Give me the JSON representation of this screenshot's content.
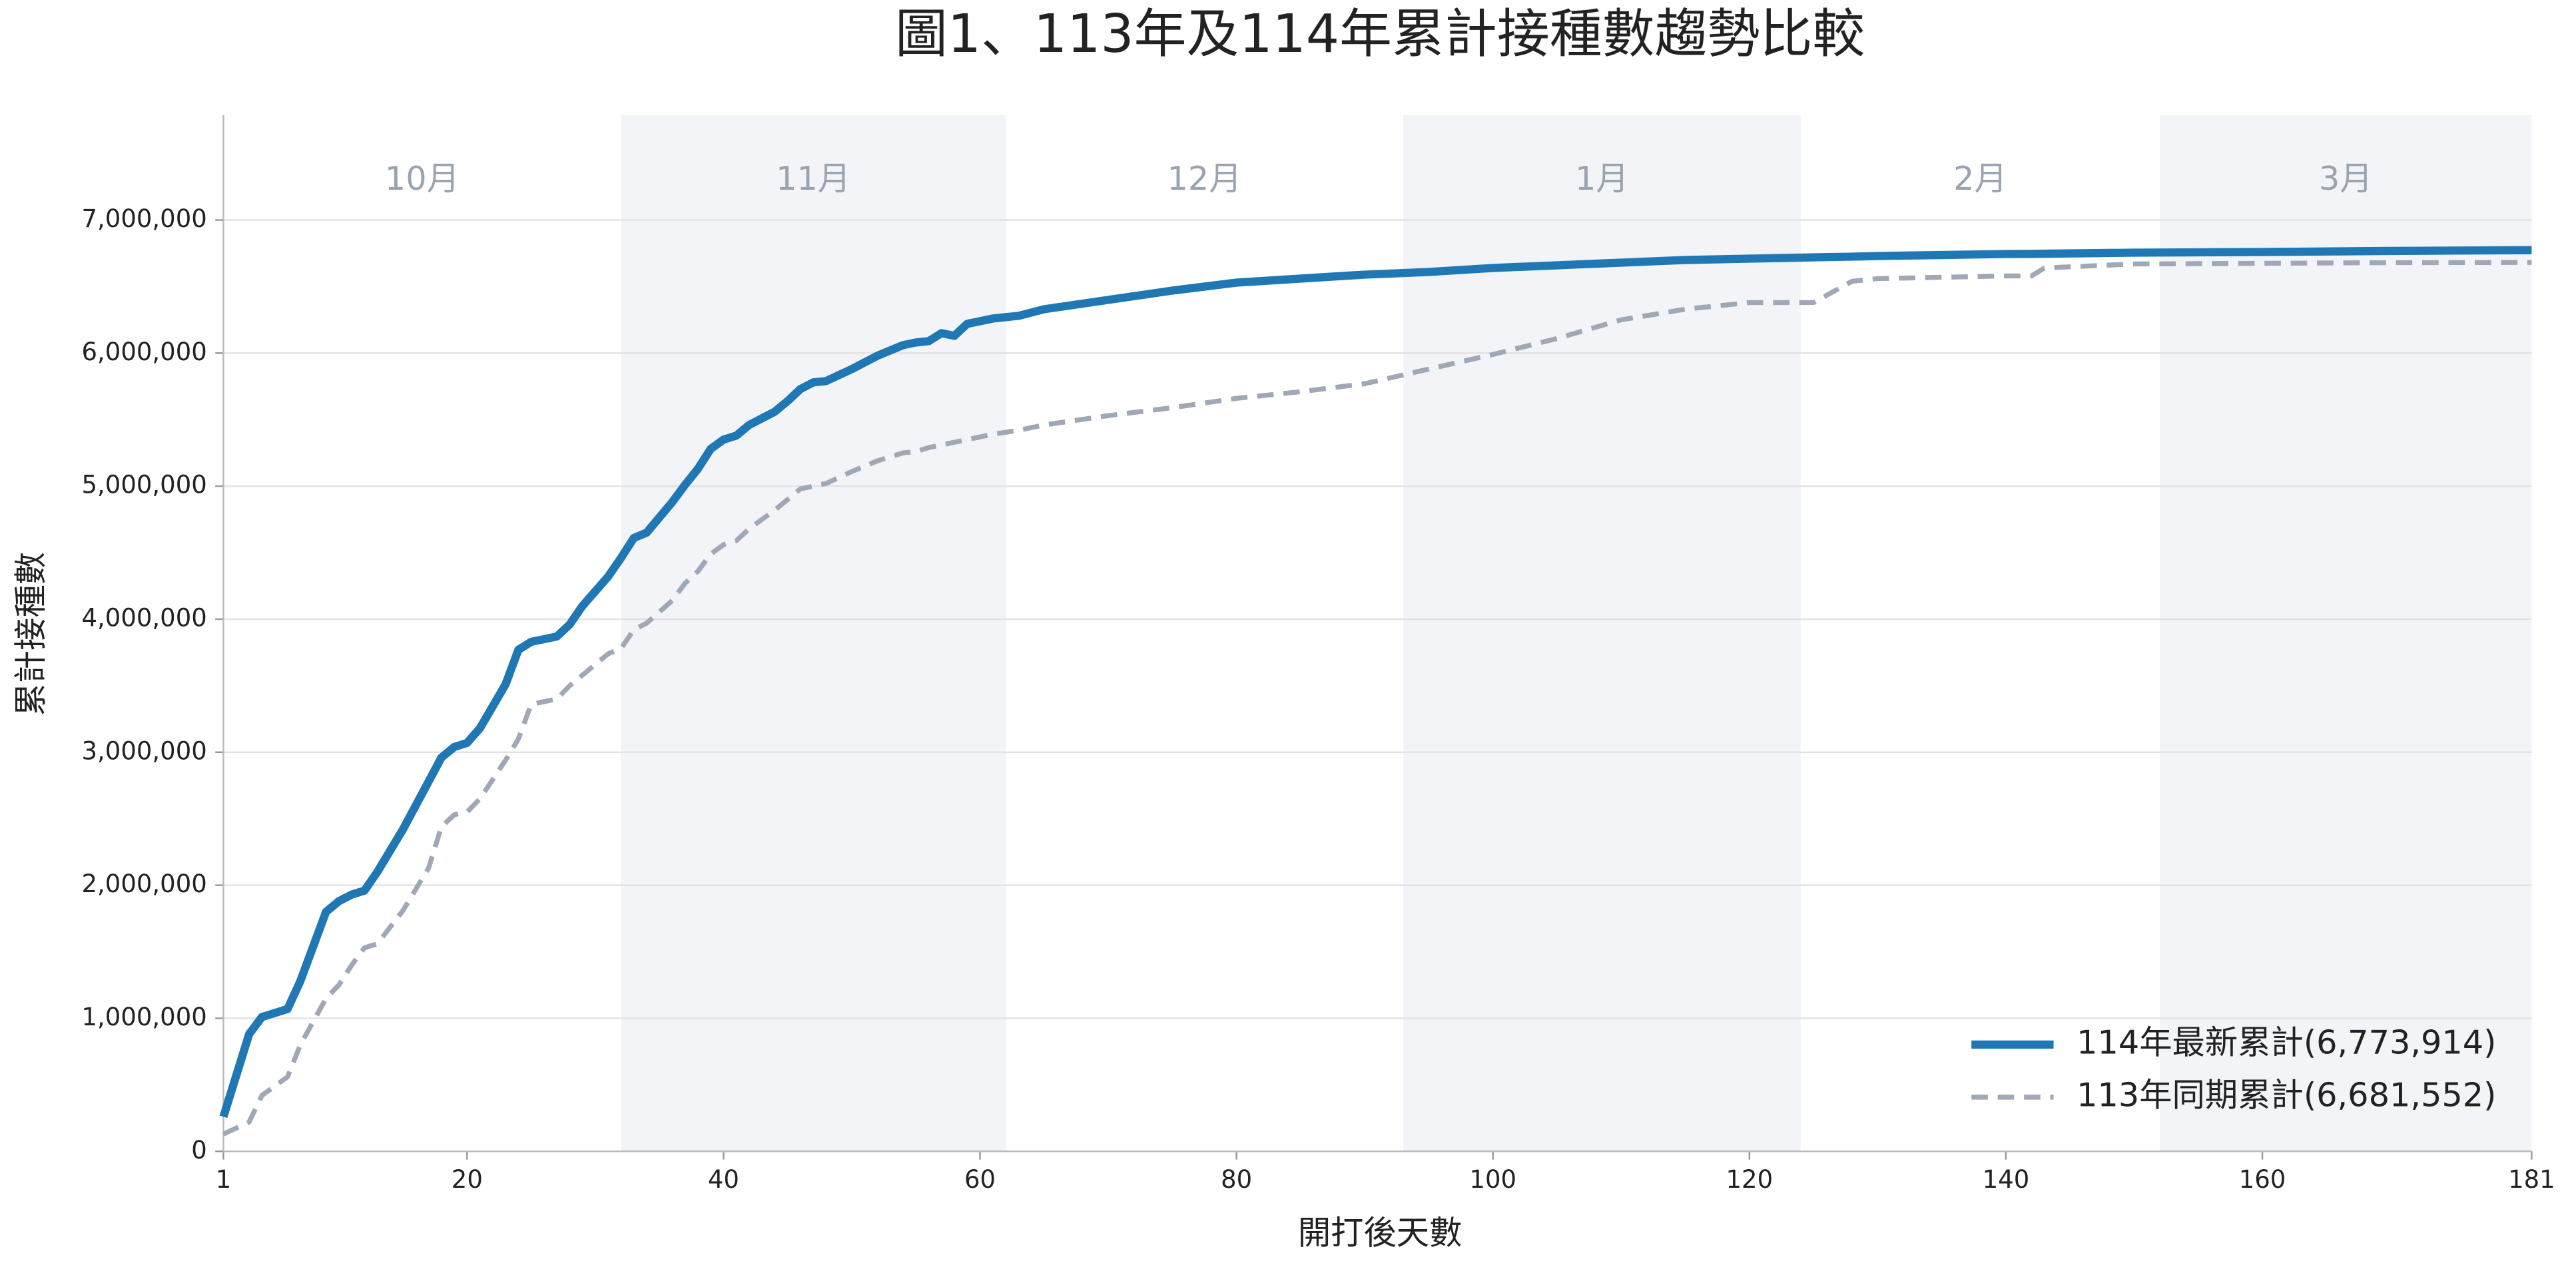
{
  "chart_data": {
    "type": "line",
    "title": "圖1、113年及114年累計接種數趨勢比較",
    "x_label": "開打後天數",
    "y_label": "累計接種數",
    "xlim": [
      1,
      181
    ],
    "ylim": [
      0,
      7790000
    ],
    "xticks": [
      1,
      20,
      40,
      60,
      80,
      100,
      120,
      140,
      160,
      181
    ],
    "yticks": [
      0,
      {
        "value": 1000000,
        "label": "1,000,000"
      },
      {
        "value": 2000000,
        "label": "2,000,000"
      },
      {
        "value": 3000000,
        "label": "3,000,000"
      },
      {
        "value": 4000000,
        "label": "4,000,000"
      },
      {
        "value": 5000000,
        "label": "5,000,000"
      },
      {
        "value": 6000000,
        "label": "6,000,000"
      },
      {
        "value": 7000000,
        "label": "7,000,000"
      }
    ],
    "grid": true,
    "legend": "lower right",
    "month_bands": [
      {
        "label": "10月",
        "start": 1,
        "end": 32
      },
      {
        "label": "11月",
        "start": 32,
        "end": 62
      },
      {
        "label": "12月",
        "start": 62,
        "end": 93
      },
      {
        "label": "1月",
        "start": 93,
        "end": 124
      },
      {
        "label": "2月",
        "start": 124,
        "end": 152
      },
      {
        "label": "3月",
        "start": 152,
        "end": 181
      }
    ],
    "x": [
      1,
      3,
      4,
      6,
      7,
      9,
      10,
      11,
      12,
      13,
      15,
      17,
      18,
      19,
      20,
      21,
      23,
      24,
      25,
      26,
      27,
      28,
      29,
      31,
      32,
      33,
      34,
      36,
      37,
      38,
      39,
      40,
      41,
      42,
      44,
      45,
      46,
      47,
      48,
      50,
      52,
      54,
      55,
      56,
      57,
      58,
      59,
      61,
      63,
      65,
      70,
      75,
      80,
      85,
      90,
      95,
      100,
      105,
      110,
      115,
      120,
      125,
      128,
      130,
      140,
      142,
      143,
      150,
      160,
      170,
      181
    ],
    "series": [
      {
        "name": "114年最新累計(6,773,914)",
        "color": "#1f77b4",
        "style": "solid",
        "values": [
          260000,
          880000,
          1010000,
          1070000,
          1280000,
          1800000,
          1880000,
          1930000,
          1960000,
          2100000,
          2420000,
          2780000,
          2960000,
          3040000,
          3070000,
          3180000,
          3510000,
          3770000,
          3830000,
          3850000,
          3870000,
          3960000,
          4100000,
          4320000,
          4460000,
          4610000,
          4650000,
          4880000,
          5010000,
          5130000,
          5280000,
          5350000,
          5380000,
          5460000,
          5560000,
          5640000,
          5730000,
          5780000,
          5790000,
          5880000,
          5980000,
          6060000,
          6080000,
          6090000,
          6150000,
          6130000,
          6220000,
          6260000,
          6280000,
          6330000,
          6400000,
          6470000,
          6530000,
          6560000,
          6590000,
          6610000,
          6640000,
          6660000,
          6680000,
          6700000,
          6710000,
          6720000,
          6725000,
          6730000,
          6745000,
          6746000,
          6747000,
          6755000,
          6760000,
          6768000,
          6773914
        ]
      },
      {
        "name": "113年同期累計(6,681,552)",
        "color": "#a0a8b5",
        "style": "dashed",
        "values": [
          130000,
          220000,
          420000,
          560000,
          800000,
          1150000,
          1250000,
          1400000,
          1530000,
          1560000,
          1810000,
          2130000,
          2440000,
          2530000,
          2550000,
          2650000,
          2940000,
          3100000,
          3360000,
          3380000,
          3400000,
          3500000,
          3580000,
          3740000,
          3780000,
          3920000,
          3970000,
          4140000,
          4270000,
          4360000,
          4490000,
          4560000,
          4590000,
          4680000,
          4820000,
          4900000,
          4980000,
          5000000,
          5020000,
          5110000,
          5190000,
          5250000,
          5260000,
          5290000,
          5310000,
          5330000,
          5350000,
          5390000,
          5420000,
          5460000,
          5530000,
          5590000,
          5660000,
          5710000,
          5770000,
          5880000,
          5990000,
          6110000,
          6250000,
          6330000,
          6380000,
          6380000,
          6540000,
          6560000,
          6580000,
          6580000,
          6640000,
          6670000,
          6675000,
          6680000,
          6681552
        ]
      }
    ]
  }
}
